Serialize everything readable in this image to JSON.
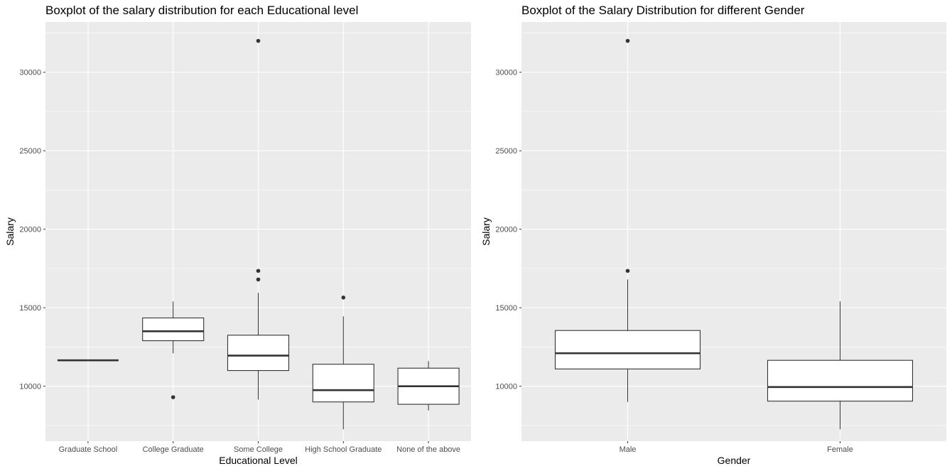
{
  "chart_data": [
    {
      "type": "boxplot",
      "title": "Boxplot of the salary distribution for each Educational level",
      "xlabel": "Educational Level",
      "ylabel": "Salary",
      "ylim": [
        6500,
        33200
      ],
      "y_ticks": [
        10000,
        15000,
        20000,
        25000,
        30000
      ],
      "grid": true,
      "categories": [
        "Graduate School",
        "College Graduate",
        "Some College",
        "High School Graduate",
        "None of the above"
      ],
      "boxes": [
        {
          "q1": 11650,
          "median": 11650,
          "q3": 11650,
          "whisker_low": 11650,
          "whisker_high": 11650,
          "outliers": []
        },
        {
          "q1": 12900,
          "median": 13500,
          "q3": 14350,
          "whisker_low": 12100,
          "whisker_high": 15400,
          "outliers": [
            9300
          ]
        },
        {
          "q1": 11000,
          "median": 11950,
          "q3": 13250,
          "whisker_low": 9150,
          "whisker_high": 15950,
          "outliers": [
            16800,
            17350,
            32000
          ]
        },
        {
          "q1": 9000,
          "median": 9750,
          "q3": 11400,
          "whisker_low": 7250,
          "whisker_high": 14450,
          "outliers": [
            15650
          ]
        },
        {
          "q1": 8850,
          "median": 10000,
          "q3": 11150,
          "whisker_low": 8450,
          "whisker_high": 11600,
          "outliers": []
        }
      ]
    },
    {
      "type": "boxplot",
      "title": "Boxplot of the Salary Distribution for different Gender",
      "xlabel": "Gender",
      "ylabel": "Salary",
      "ylim": [
        6500,
        33200
      ],
      "y_ticks": [
        10000,
        15000,
        20000,
        25000,
        30000
      ],
      "grid": true,
      "categories": [
        "Male",
        "Female"
      ],
      "boxes": [
        {
          "q1": 11100,
          "median": 12100,
          "q3": 13550,
          "whisker_low": 9000,
          "whisker_high": 16800,
          "outliers": [
            17350,
            32000
          ]
        },
        {
          "q1": 9050,
          "median": 9950,
          "q3": 11650,
          "whisker_low": 7250,
          "whisker_high": 15400,
          "outliers": []
        }
      ]
    }
  ]
}
